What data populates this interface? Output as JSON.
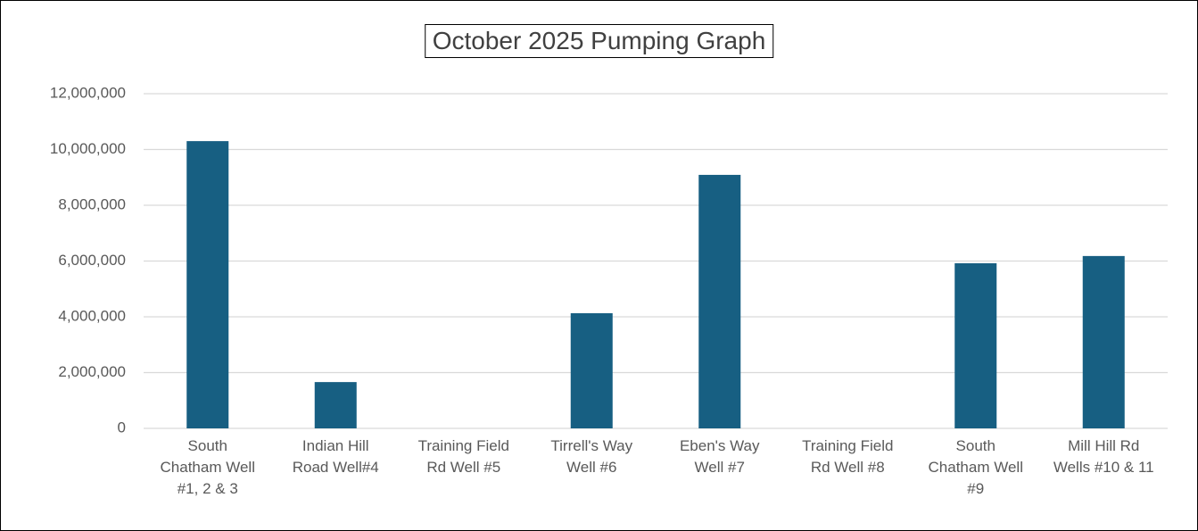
{
  "chart_data": {
    "type": "bar",
    "title": "October 2025 Pumping Graph",
    "categories": [
      "South Chatham Well #1, 2 & 3",
      "Indian Hill Road Well#4",
      "Training Field Rd Well #5",
      "Tirrell's Way Well #6",
      "Eben's Way Well #7",
      "Training Field Rd Well #8",
      "South Chatham Well #9",
      "Mill Hill Rd Wells  #10 & 11"
    ],
    "values": [
      10300000,
      1660000,
      0,
      4130000,
      9090000,
      0,
      5920000,
      6180000
    ],
    "color": "#175f82",
    "ylim": [
      0,
      12000000
    ],
    "yticks": [
      {
        "value": 0,
        "label": "0"
      },
      {
        "value": 2000000,
        "label": "2,000,000"
      },
      {
        "value": 4000000,
        "label": "4,000,000"
      },
      {
        "value": 6000000,
        "label": "6,000,000"
      },
      {
        "value": 8000000,
        "label": "8,000,000"
      },
      {
        "value": 10000000,
        "label": "10,000,000"
      },
      {
        "value": 12000000,
        "label": "12,000,000"
      }
    ],
    "grid": true
  }
}
